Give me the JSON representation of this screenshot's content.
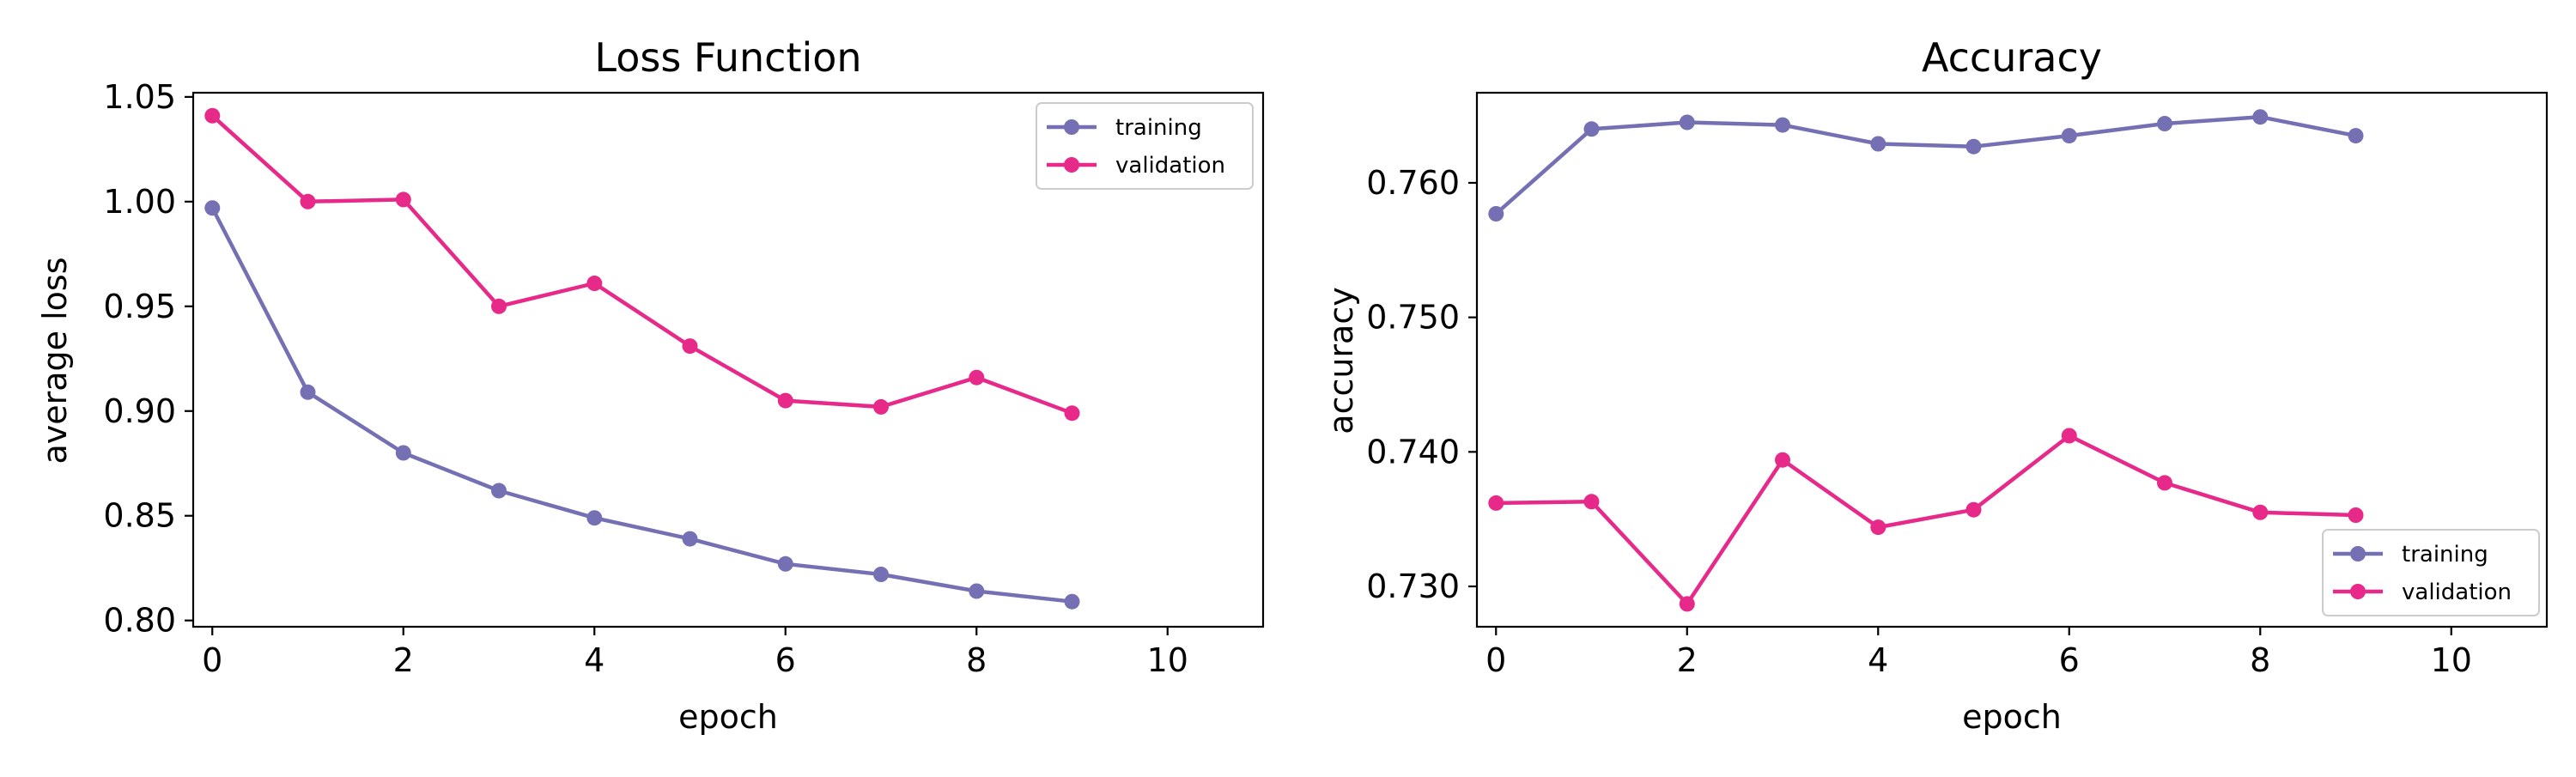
{
  "colors": {
    "training": "#7570b3",
    "validation": "#e7298a"
  },
  "chart_data": [
    {
      "type": "line",
      "title": "Loss Function",
      "xlabel": "epoch",
      "ylabel": "average loss",
      "xlim": [
        -0.2,
        11
      ],
      "ylim": [
        0.797,
        1.052
      ],
      "xticks": [
        0,
        2,
        4,
        6,
        8,
        10
      ],
      "xtick_labels": [
        "0",
        "2",
        "4",
        "6",
        "8",
        "10"
      ],
      "yticks": [
        0.8,
        0.85,
        0.9,
        0.95,
        1.0,
        1.05
      ],
      "ytick_labels": [
        "0.80",
        "0.85",
        "0.90",
        "0.95",
        "1.00",
        "1.05"
      ],
      "legend_position": "top-right",
      "grid": false,
      "x": [
        0,
        1,
        2,
        3,
        4,
        5,
        6,
        7,
        8,
        9
      ],
      "series": [
        {
          "name": "training",
          "values": [
            0.997,
            0.909,
            0.88,
            0.862,
            0.849,
            0.839,
            0.827,
            0.822,
            0.814,
            0.809
          ]
        },
        {
          "name": "validation",
          "values": [
            1.041,
            1.0,
            1.001,
            0.95,
            0.961,
            0.931,
            0.905,
            0.902,
            0.916,
            0.899
          ]
        }
      ]
    },
    {
      "type": "line",
      "title": "Accuracy",
      "xlabel": "epoch",
      "ylabel": "accuracy",
      "xlim": [
        -0.2,
        11
      ],
      "ylim": [
        0.727,
        0.7667
      ],
      "xticks": [
        0,
        2,
        4,
        6,
        8,
        10
      ],
      "xtick_labels": [
        "0",
        "2",
        "4",
        "6",
        "8",
        "10"
      ],
      "yticks": [
        0.73,
        0.74,
        0.75,
        0.76
      ],
      "ytick_labels": [
        "0.730",
        "0.740",
        "0.750",
        "0.760"
      ],
      "legend_position": "bottom-right",
      "grid": false,
      "x": [
        0,
        1,
        2,
        3,
        4,
        5,
        6,
        7,
        8,
        9
      ],
      "series": [
        {
          "name": "training",
          "values": [
            0.7577,
            0.764,
            0.7645,
            0.7643,
            0.7629,
            0.7627,
            0.7635,
            0.7644,
            0.7649,
            0.7635
          ]
        },
        {
          "name": "validation",
          "values": [
            0.7362,
            0.7363,
            0.7287,
            0.7394,
            0.7344,
            0.7357,
            0.7412,
            0.7377,
            0.7355,
            0.7353
          ]
        }
      ]
    }
  ]
}
